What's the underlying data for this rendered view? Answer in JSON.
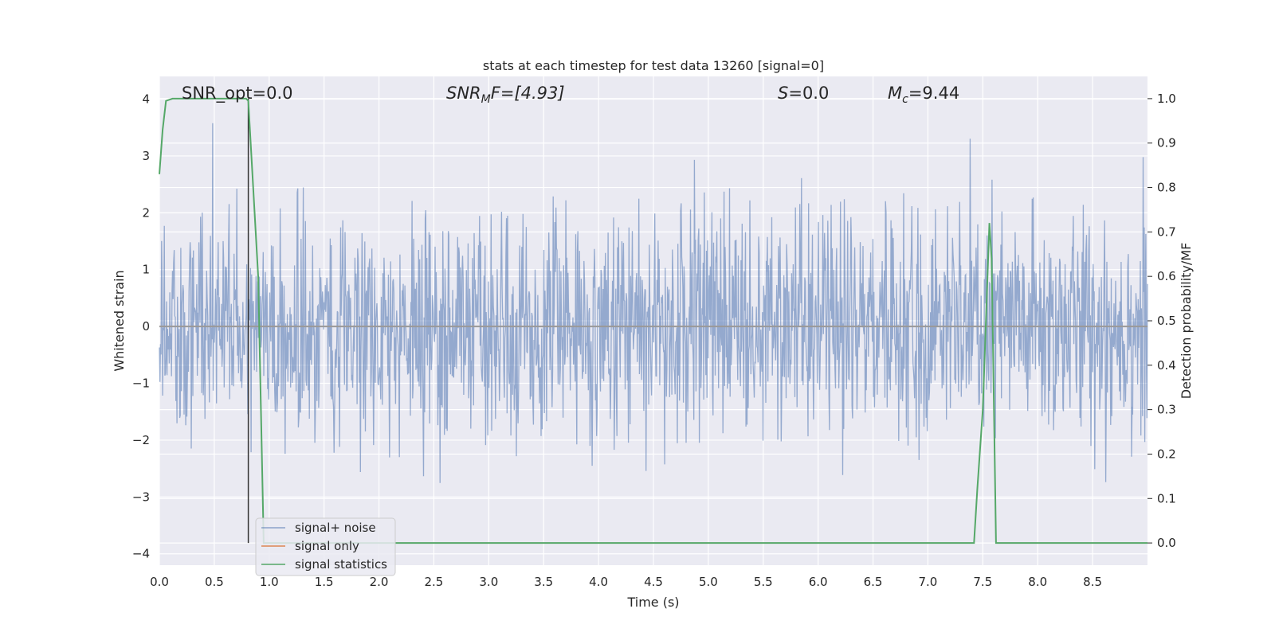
{
  "chart_data": {
    "type": "line",
    "title": "stats at each timestep for test data 13260 [signal=0]",
    "xlabel": "Time (s)",
    "ylabel": "Whitened strain",
    "y2label": "Detection probability/MF",
    "xlim": [
      0.0,
      9.0
    ],
    "ylim": [
      -4.2,
      4.4
    ],
    "y2lim": [
      -0.05,
      1.05
    ],
    "xticks": [
      "0.0",
      "0.5",
      "1.0",
      "1.5",
      "2.0",
      "2.5",
      "3.0",
      "3.5",
      "4.0",
      "4.5",
      "5.0",
      "5.5",
      "6.0",
      "6.5",
      "7.0",
      "7.5",
      "8.0",
      "8.5"
    ],
    "yticks": [
      "4",
      "3",
      "2",
      "1",
      "0",
      "−1",
      "−2",
      "−3",
      "−4"
    ],
    "y2ticks": [
      "1.0",
      "0.9",
      "0.8",
      "0.7",
      "0.6",
      "0.5",
      "0.4",
      "0.3",
      "0.2",
      "0.1",
      "0.0"
    ],
    "grid": true,
    "legend_position": "lower-left",
    "annotations": [
      {
        "text": "SNR_opt=0.0",
        "x": 0.19,
        "y": 4.1
      },
      {
        "text": "SNR_MF=[4.93]",
        "x": 2.6,
        "y": 4.1
      },
      {
        "text": "S=0.0",
        "x": 5.6,
        "y": 4.1
      },
      {
        "text": "M_c=9.44",
        "x": 6.6,
        "y": 4.1
      }
    ],
    "vertical_line_x": 0.81,
    "series": [
      {
        "name": "signal+ noise",
        "color": "#4c72b0",
        "axis": "left",
        "noise_model": {
          "std": 1.0,
          "count": 1800,
          "x_range": [
            0.0,
            9.0
          ]
        }
      },
      {
        "name": "signal only",
        "color": "#dd8452",
        "axis": "left",
        "x": [
          0.0,
          9.0
        ],
        "y": [
          0.0,
          0.0
        ]
      },
      {
        "name": "signal statistics",
        "color": "#55a868",
        "axis": "right",
        "x": [
          0.0,
          0.03,
          0.06,
          0.12,
          0.5,
          0.79,
          0.81,
          0.85,
          0.9,
          0.95,
          7.42,
          7.45,
          7.5,
          7.56,
          7.58,
          7.62,
          9.0
        ],
        "y": [
          0.83,
          0.93,
          0.995,
          1.0,
          1.0,
          1.0,
          0.995,
          0.82,
          0.6,
          0.0,
          0.0,
          0.12,
          0.3,
          0.72,
          0.64,
          0.0,
          0.0
        ]
      }
    ]
  },
  "annotation_display": {
    "a1_main": "SNR_opt=0.0",
    "a2_base": "SNR",
    "a2_sub": "M",
    "a2_rest": "F=[4.93]",
    "a3_base": "S",
    "a3_rest": "=0.0",
    "a4_base": "M",
    "a4_sub": "c",
    "a4_rest": "=9.44"
  },
  "legend": {
    "items": [
      "signal+ noise",
      "signal only",
      "signal statistics"
    ]
  }
}
